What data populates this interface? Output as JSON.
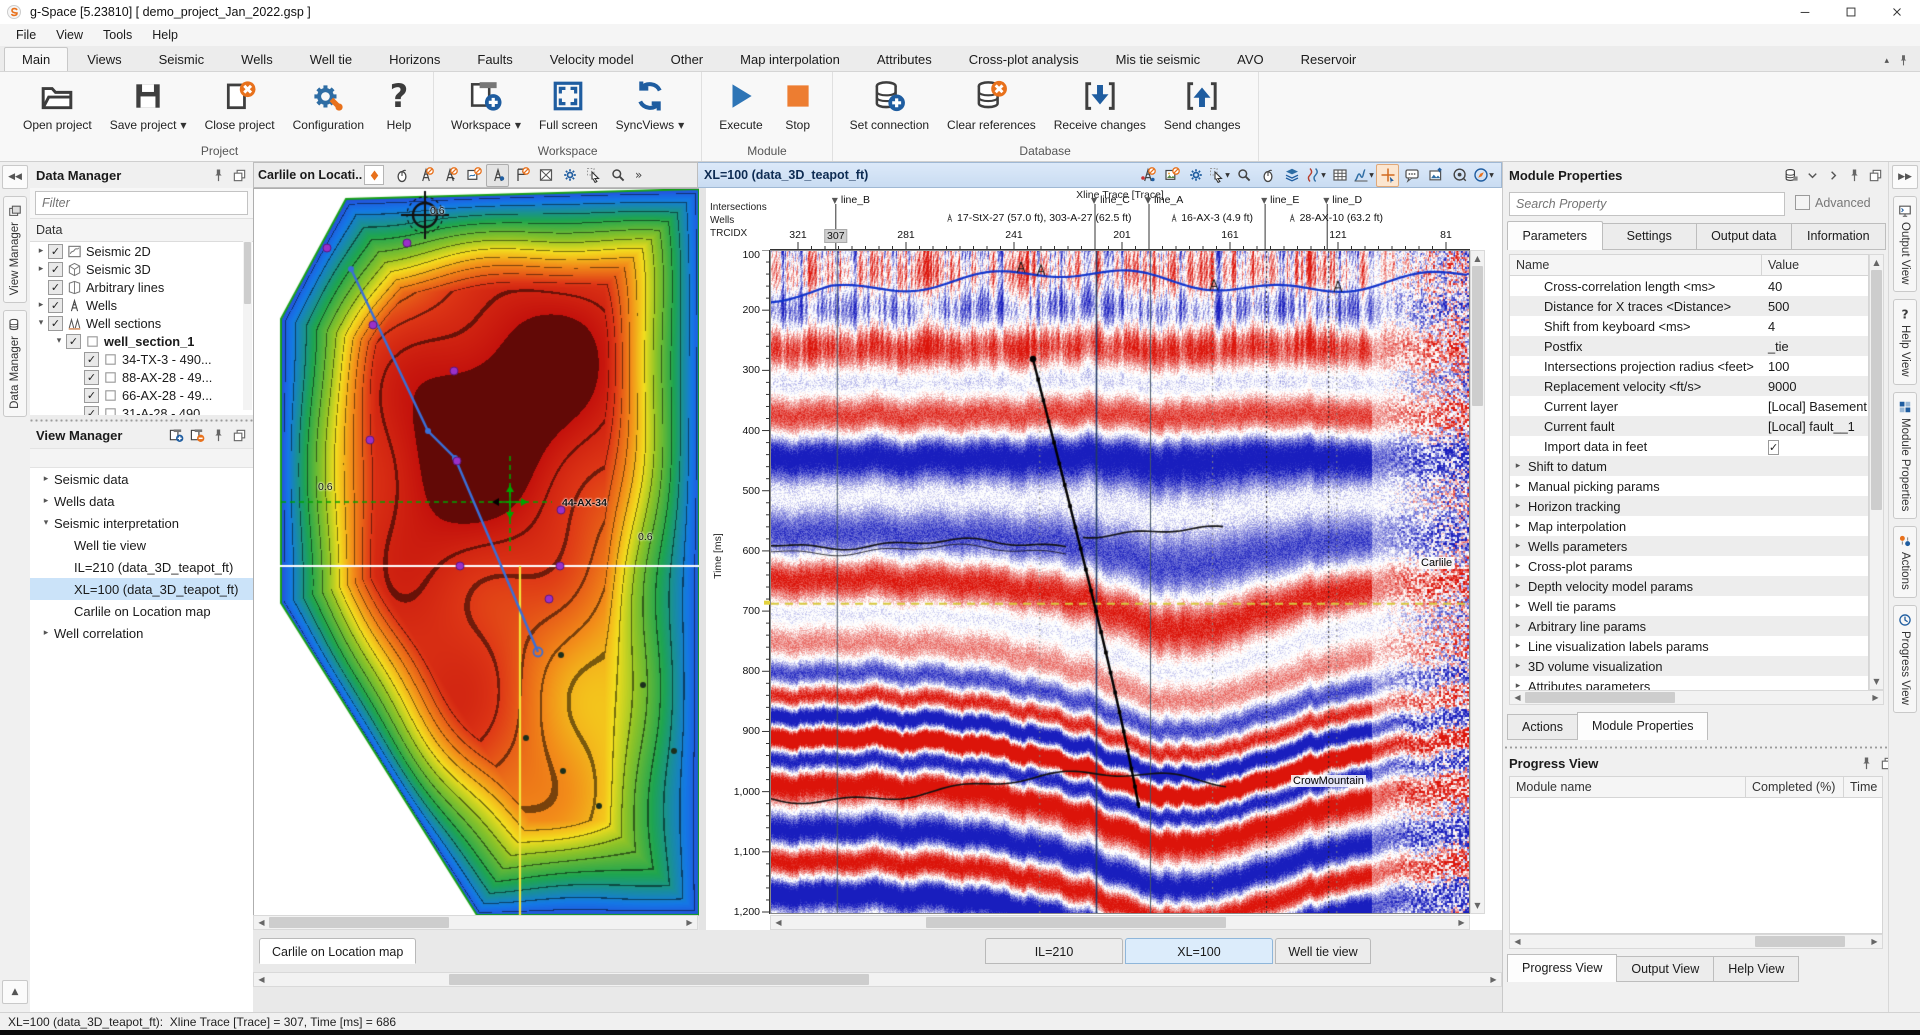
{
  "window": {
    "title": "g-Space [5.23810] [ demo_project_Jan_2022.gsp ]"
  },
  "menu_bar": [
    "File",
    "View",
    "Tools",
    "Help"
  ],
  "ribbon": {
    "tabs": [
      "Main",
      "Views",
      "Seismic",
      "Wells",
      "Well tie",
      "Horizons",
      "Faults",
      "Velocity model",
      "Other",
      "Map interpolation",
      "Attributes",
      "Cross-plot analysis",
      "Mis tie seismic",
      "AVO",
      "Reservoir"
    ],
    "active_tab": "Main",
    "groups": [
      {
        "label": "Project",
        "buttons": [
          {
            "label": "Open project",
            "icon": "open-project"
          },
          {
            "label": "Save project",
            "icon": "save-project",
            "dropdown": true
          },
          {
            "label": "Close project",
            "icon": "close-project"
          },
          {
            "label": "Configuration",
            "icon": "configuration"
          },
          {
            "label": "Help",
            "icon": "help"
          }
        ]
      },
      {
        "label": "Workspace",
        "buttons": [
          {
            "label": "Workspace",
            "icon": "workspace-add",
            "dropdown": true
          },
          {
            "label": "Full screen",
            "icon": "full-screen"
          },
          {
            "label": "SyncViews",
            "icon": "sync-views",
            "dropdown": true
          }
        ]
      },
      {
        "label": "Module",
        "buttons": [
          {
            "label": "Execute",
            "icon": "execute"
          },
          {
            "label": "Stop",
            "icon": "stop"
          }
        ]
      },
      {
        "label": "Database",
        "buttons": [
          {
            "label": "Set connection",
            "icon": "set-connection"
          },
          {
            "label": "Clear references",
            "icon": "clear-references"
          },
          {
            "label": "Receive changes",
            "icon": "receive-changes"
          },
          {
            "label": "Send changes",
            "icon": "send-changes"
          }
        ]
      }
    ]
  },
  "left_edge": {
    "tabs": [
      {
        "label": "View Manager",
        "icon": "view-manager"
      },
      {
        "label": "Data Manager",
        "icon": "data-manager"
      }
    ]
  },
  "data_manager": {
    "title": "Data Manager",
    "filter_placeholder": "Filter",
    "column_header": "Data",
    "tree": [
      {
        "label": "Seismic 2D",
        "icon": "seismic-2d",
        "expander": "collapsed",
        "checked": true,
        "level": 1
      },
      {
        "label": "Seismic 3D",
        "icon": "seismic-3d",
        "expander": "collapsed",
        "checked": true,
        "level": 1
      },
      {
        "label": "Arbitrary lines",
        "icon": "arbitrary-lines",
        "expander": "none",
        "checked": true,
        "level": 1
      },
      {
        "label": "Wells",
        "icon": "wells",
        "expander": "collapsed",
        "checked": true,
        "level": 1
      },
      {
        "label": "Well sections",
        "icon": "well-sections",
        "expander": "expanded",
        "checked": true,
        "level": 1
      },
      {
        "label": "well_section_1",
        "icon": "box",
        "expander": "expanded",
        "checked": true,
        "level": 2,
        "bold": true
      },
      {
        "label": "34-TX-3 - 490...",
        "icon": "box",
        "expander": "none",
        "checked": true,
        "level": 3
      },
      {
        "label": "88-AX-28 - 49...",
        "icon": "box",
        "expander": "none",
        "checked": true,
        "level": 3
      },
      {
        "label": "66-AX-28 - 49...",
        "icon": "box",
        "expander": "none",
        "checked": true,
        "level": 3
      },
      {
        "label": "31-A-28 - 490...",
        "icon": "box",
        "expander": "none",
        "checked": true,
        "level": 3
      }
    ]
  },
  "view_manager": {
    "title": "View Manager",
    "tree": [
      {
        "label": "Seismic data",
        "expander": "collapsed",
        "level": 1
      },
      {
        "label": "Wells data",
        "expander": "collapsed",
        "level": 1
      },
      {
        "label": "Seismic interpretation",
        "expander": "expanded",
        "level": 1
      },
      {
        "label": "Well tie view",
        "expander": "none",
        "level": 2
      },
      {
        "label": "IL=210 (data_3D_teapot_ft)",
        "expander": "none",
        "level": 2
      },
      {
        "label": "XL=100 (data_3D_teapot_ft)",
        "expander": "none",
        "level": 2,
        "selected": true
      },
      {
        "label": "Carlile on Location map",
        "expander": "none",
        "level": 2
      },
      {
        "label": "Well correlation",
        "expander": "collapsed",
        "level": 1
      }
    ]
  },
  "map_view": {
    "title": "Carlile on Locati...",
    "toolbar": [
      "mouse",
      "well-off",
      "well-cursor-off",
      "map-off",
      "well-pick",
      "flag-off",
      "map-clear",
      "gear",
      "pointer",
      "zoom"
    ],
    "well_label": "44-AX-34",
    "contour_labels": [
      "0.6",
      "0.6",
      "0.6"
    ]
  },
  "seismic_view": {
    "title": "XL=100 (data_3D_teapot_ft)",
    "toolbar": [
      "well-add",
      "image-off",
      "gear",
      "pointer",
      "zoom",
      "mouse",
      "layers",
      "wiggle",
      "grid-table",
      "histogram",
      "crosshair",
      "comment",
      "image-arrow",
      "record",
      "compass"
    ],
    "top_axis": {
      "title": "Xline Trace [Trace]",
      "row_labels": [
        "Intersections",
        "Wells",
        "TRCIDX"
      ],
      "tick_traces": [
        321,
        281,
        241,
        201,
        161,
        121,
        81
      ],
      "cursor_trace": 307,
      "lines": [
        {
          "label": "line_B",
          "trace": 307
        },
        {
          "label": "line_C",
          "trace": 211
        },
        {
          "label": "line_A",
          "trace": 191
        },
        {
          "label": "line_E",
          "trace": 148
        },
        {
          "label": "line_D",
          "trace": 125
        }
      ],
      "wells": [
        {
          "label": "17-StX-27 (57.0 ft), 303-A-27 (62.5 ft)",
          "trace": 232
        },
        {
          "label": "16-AX-3 (4.9 ft)",
          "trace": 168
        },
        {
          "label": "28-AX-10 (63.2 ft)",
          "trace": 122
        }
      ]
    },
    "left_axis": {
      "title": "Time [ms]",
      "tick_labels": [
        "100",
        "200",
        "300",
        "400",
        "500",
        "600",
        "700",
        "800",
        "900",
        "1,000",
        "1,100",
        "1,200"
      ],
      "t_min": 100,
      "t_max": 1200
    },
    "horizons": [
      {
        "label": "Carlile"
      },
      {
        "label": "CrowMountain"
      }
    ],
    "crosshair": {
      "trace": 307,
      "time_ms": 686
    }
  },
  "workspace_tabs": {
    "left": [
      {
        "label": "Carlile on Location map",
        "active": true
      }
    ],
    "right": [
      {
        "label": "IL=210 (data_3D_teapot_ft)",
        "active": false
      },
      {
        "label": "XL=100 (data_3D_teapot_ft)",
        "active": true
      },
      {
        "label": "Well tie view",
        "active": false
      }
    ]
  },
  "module_properties": {
    "title": "Module Properties",
    "search_placeholder": "Search Property",
    "advanced_label": "Advanced",
    "tabs": [
      "Parameters",
      "Settings",
      "Output data",
      "Information"
    ],
    "active_tab": "Parameters",
    "columns": [
      "Name",
      "Value"
    ],
    "rows": [
      {
        "name": "Cross-correlation length <ms>",
        "value": "40"
      },
      {
        "name": "Distance for X traces <Distance>",
        "value": "500"
      },
      {
        "name": "Shift from keyboard <ms>",
        "value": "4"
      },
      {
        "name": "Postfix",
        "value": "_tie"
      },
      {
        "name": "Intersections projection radius <feet>",
        "value": "100"
      },
      {
        "name": "Replacement velocity <ft/s>",
        "value": "9000"
      },
      {
        "name": "Current layer",
        "value": "[Local] Basement"
      },
      {
        "name": "Current fault",
        "value": "[Local] fault__1"
      },
      {
        "name": "Import data in feet",
        "value": "",
        "checkbox": true,
        "checked": true
      },
      {
        "name": "Shift to datum",
        "group": true
      },
      {
        "name": "Manual picking params",
        "group": true
      },
      {
        "name": "Horizon tracking",
        "group": true
      },
      {
        "name": "Map interpolation",
        "group": true
      },
      {
        "name": "Wells parameters",
        "group": true
      },
      {
        "name": "Cross-plot params",
        "group": true
      },
      {
        "name": "Depth velocity model params",
        "group": true
      },
      {
        "name": "Well tie params",
        "group": true
      },
      {
        "name": "Arbitrary line params",
        "group": true
      },
      {
        "name": "Line visualization labels params",
        "group": true
      },
      {
        "name": "3D volume visualization",
        "group": true
      },
      {
        "name": "Attributes parameters",
        "group": true
      }
    ],
    "bottom_tabs": [
      {
        "label": "Actions",
        "active": false
      },
      {
        "label": "Module Properties",
        "active": true
      }
    ]
  },
  "progress_view": {
    "title": "Progress View",
    "columns": [
      "Module name",
      "Completed (%)",
      "Time rer"
    ],
    "bottom_tabs": [
      {
        "label": "Progress View",
        "active": true
      },
      {
        "label": "Output View",
        "active": false
      },
      {
        "label": "Help View",
        "active": false
      }
    ]
  },
  "right_edge": {
    "tabs": [
      {
        "label": "Output View",
        "icon": "output-view"
      },
      {
        "label": "Help View",
        "icon": "help-view"
      },
      {
        "label": "Module Properties",
        "icon": "module-properties"
      },
      {
        "label": "Actions",
        "icon": "actions"
      },
      {
        "label": "Progress View",
        "icon": "progress-view"
      }
    ]
  },
  "status_bar": {
    "text": "XL=100 (data_3D_teapot_ft):  Xline Trace [Trace] = 307, Time [ms] = 686"
  },
  "colors": {
    "accent_blue": "#2e75b6",
    "accent_orange": "#e8711c",
    "selection": "#cbe3f9",
    "seismic_red": "#c81008",
    "seismic_blue": "#1018be"
  }
}
